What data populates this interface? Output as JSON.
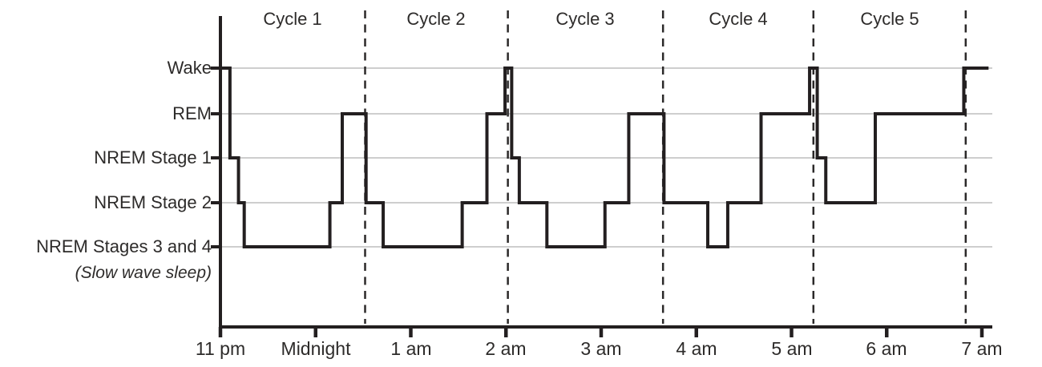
{
  "figure": {
    "background_color": "#ffffff",
    "line_color": "#231f20",
    "grid_color": "#bdbdbd",
    "dash_color": "#2b2929",
    "text_color": "#2d2b2a"
  },
  "chart_data": {
    "type": "line",
    "variant": "step-hypnogram",
    "title": "",
    "x_axis": {
      "unit": "clock time",
      "tick_labels": [
        "11 pm",
        "Midnight",
        "1 am",
        "2 am",
        "3 am",
        "4 am",
        "5 am",
        "6 am",
        "7 am"
      ],
      "tick_hours_after_11pm": [
        0,
        1,
        2,
        3,
        4,
        5,
        6,
        7,
        8
      ]
    },
    "y_axis": {
      "labels": [
        "Wake",
        "REM",
        "NREM Stage 1",
        "NREM Stage 2",
        "NREM Stages 3 and 4"
      ],
      "sublabel": "(Slow wave sleep)"
    },
    "cycle_labels": [
      "Cycle 1",
      "Cycle 2",
      "Cycle 3",
      "Cycle 4",
      "Cycle 5"
    ],
    "cycle_boundaries_hours": [
      1.52,
      3.02,
      4.65,
      6.23,
      7.83
    ],
    "x_range_hours": [
      0,
      8.11
    ],
    "grid": true,
    "segments_hours_after_11pm": [
      {
        "stage": "Wake",
        "from": 0.0,
        "to": 0.1
      },
      {
        "stage": "NREM Stage 1",
        "from": 0.1,
        "to": 0.19
      },
      {
        "stage": "NREM Stage 2",
        "from": 0.19,
        "to": 0.25
      },
      {
        "stage": "NREM Stages 3 and 4",
        "from": 0.25,
        "to": 1.15
      },
      {
        "stage": "NREM Stage 2",
        "from": 1.15,
        "to": 1.28
      },
      {
        "stage": "REM",
        "from": 1.28,
        "to": 1.53
      },
      {
        "stage": "NREM Stage 2",
        "from": 1.53,
        "to": 1.71
      },
      {
        "stage": "NREM Stages 3 and 4",
        "from": 1.71,
        "to": 2.54
      },
      {
        "stage": "NREM Stage 2",
        "from": 2.54,
        "to": 2.8
      },
      {
        "stage": "REM",
        "from": 2.8,
        "to": 2.99
      },
      {
        "stage": "Wake",
        "from": 2.99,
        "to": 3.06
      },
      {
        "stage": "NREM Stage 1",
        "from": 3.06,
        "to": 3.14
      },
      {
        "stage": "NREM Stage 2",
        "from": 3.14,
        "to": 3.43
      },
      {
        "stage": "NREM Stages 3 and 4",
        "from": 3.43,
        "to": 4.04
      },
      {
        "stage": "NREM Stage 2",
        "from": 4.04,
        "to": 4.29
      },
      {
        "stage": "REM",
        "from": 4.29,
        "to": 4.66
      },
      {
        "stage": "NREM Stage 2",
        "from": 4.66,
        "to": 5.12
      },
      {
        "stage": "NREM Stages 3 and 4",
        "from": 5.12,
        "to": 5.33
      },
      {
        "stage": "NREM Stage 2",
        "from": 5.33,
        "to": 5.68
      },
      {
        "stage": "REM",
        "from": 5.68,
        "to": 6.19
      },
      {
        "stage": "Wake",
        "from": 6.19,
        "to": 6.27
      },
      {
        "stage": "NREM Stage 1",
        "from": 6.27,
        "to": 6.36
      },
      {
        "stage": "NREM Stage 2",
        "from": 6.36,
        "to": 6.88
      },
      {
        "stage": "REM",
        "from": 6.88,
        "to": 7.81
      },
      {
        "stage": "Wake",
        "from": 7.81,
        "to": 8.07
      }
    ]
  }
}
